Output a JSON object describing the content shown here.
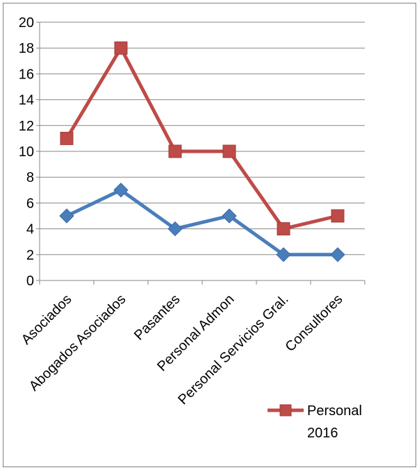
{
  "chart_data": {
    "type": "line",
    "title": "",
    "xlabel": "",
    "ylabel": "",
    "categories": [
      "Asociados",
      "Abogados Asociados",
      "Pasantes",
      "Personal Admon",
      "Personal Servicios Gral.",
      "Consultores"
    ],
    "ylim": [
      0,
      20
    ],
    "yticks": [
      "0",
      "2",
      "4",
      "6",
      "8",
      "10",
      "12",
      "14",
      "16",
      "18",
      "20"
    ],
    "grid": true,
    "legend_position": "bottom-right",
    "series": [
      {
        "color": "#4a7ebb",
        "marker": "diamond",
        "values": [
          5,
          7,
          4,
          5,
          2,
          2
        ]
      },
      {
        "name": "Personal 2016",
        "color": "#be4b48",
        "marker": "square",
        "values": [
          11,
          18,
          10,
          10,
          4,
          5
        ]
      }
    ],
    "legend": {
      "label_line1": "Personal",
      "label_line2": "2016"
    }
  }
}
